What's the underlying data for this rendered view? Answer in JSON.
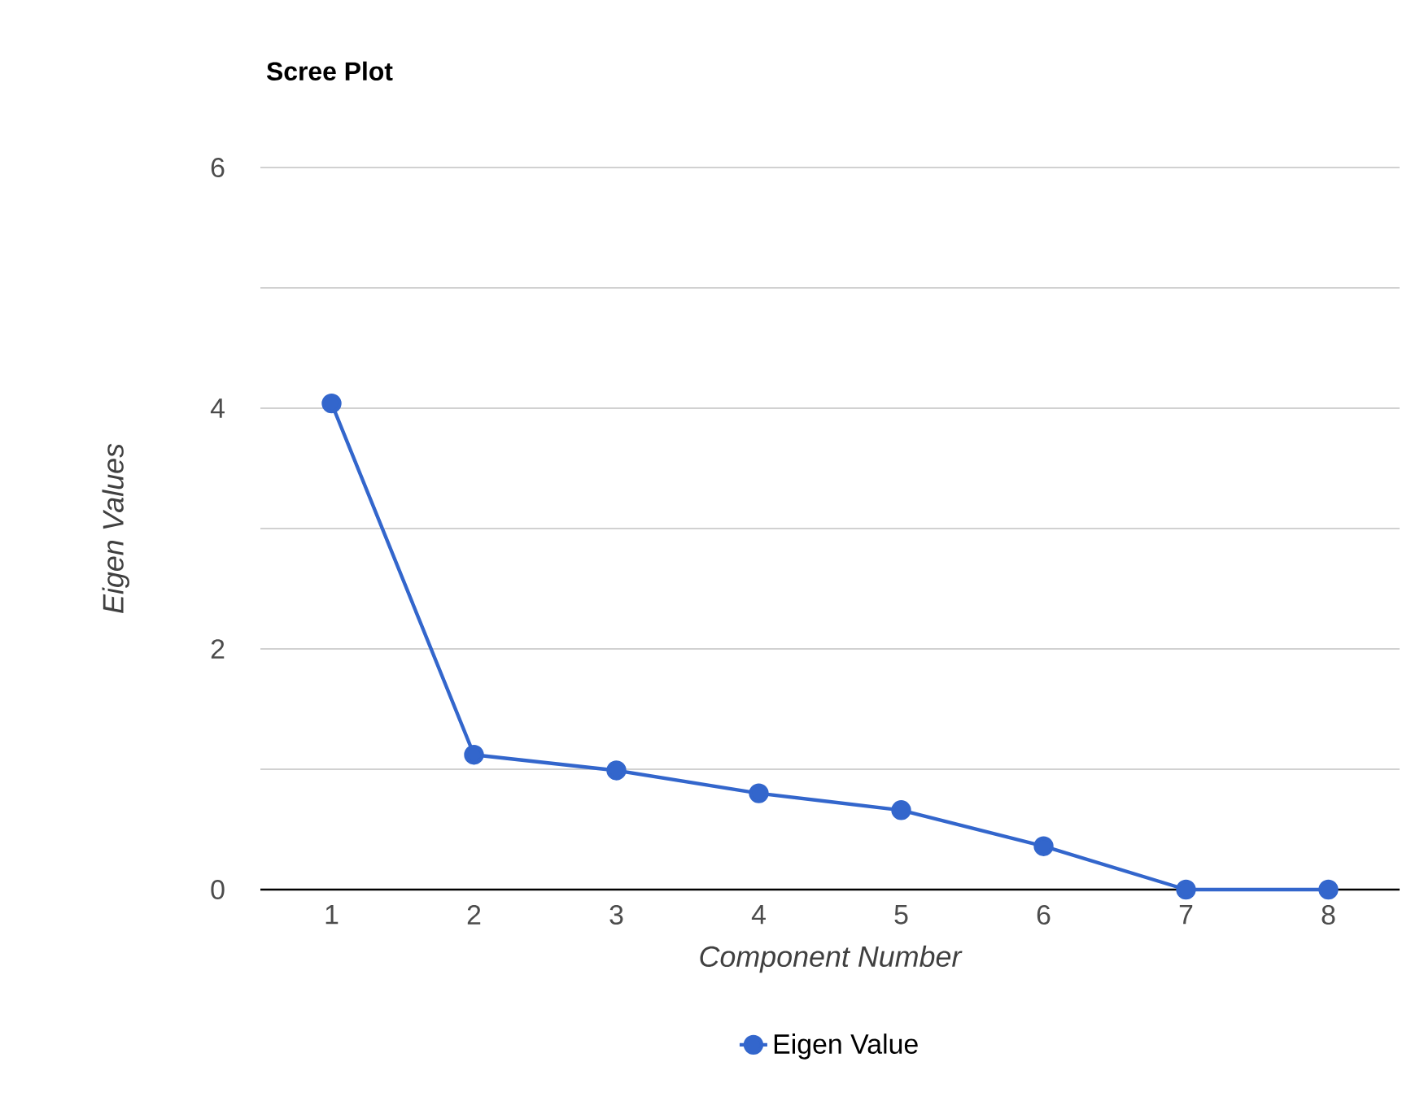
{
  "chart_data": {
    "type": "line",
    "title": "Scree Plot",
    "xlabel": "Component Number",
    "ylabel": "Eigen Values",
    "categories": [
      "1",
      "2",
      "3",
      "4",
      "5",
      "6",
      "7",
      "8"
    ],
    "series": [
      {
        "name": "Eigen Value",
        "color": "#3366cc",
        "values": [
          4.04,
          1.12,
          0.99,
          0.8,
          0.66,
          0.36,
          0,
          0
        ]
      }
    ],
    "ylim": [
      0,
      6
    ],
    "yticks": [
      0,
      {
        "value": 1,
        "label": null
      },
      2,
      {
        "value": 3,
        "label": null
      },
      4,
      {
        "value": 5,
        "label": null
      },
      6
    ],
    "grid": "y",
    "legend": "bottom",
    "marker": "circle",
    "line_style": "solid"
  }
}
